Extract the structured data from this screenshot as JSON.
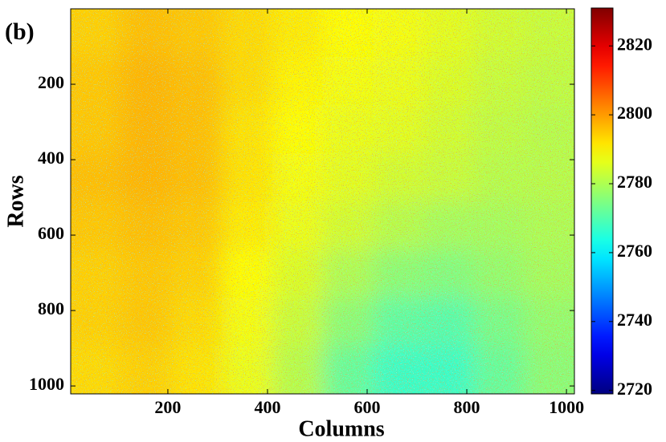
{
  "chart_data": {
    "type": "heatmap",
    "panel_label": "(b)",
    "x_label": "Columns",
    "y_label": "Rows",
    "xlim": [
      5,
      1016
    ],
    "ylim": [
      0,
      1021
    ],
    "xticks": [
      200,
      400,
      600,
      800,
      1000
    ],
    "yticks": [
      200,
      400,
      600,
      800,
      1000
    ],
    "y_reversed": true,
    "colormap": "jet",
    "clim": [
      2719,
      2831
    ],
    "colorbar_ticks": [
      2720,
      2740,
      2760,
      2780,
      2800,
      2820
    ],
    "values": [
      [
        2794,
        2796,
        2795,
        2793,
        2791,
        2789,
        2788,
        2786,
        2784,
        2783
      ],
      [
        2795,
        2797,
        2796,
        2793,
        2790,
        2788,
        2787,
        2785,
        2783,
        2782
      ],
      [
        2795,
        2797,
        2796,
        2792,
        2789,
        2787,
        2786,
        2784,
        2782,
        2781
      ],
      [
        2796,
        2797,
        2796,
        2792,
        2788,
        2786,
        2784,
        2783,
        2781,
        2781
      ],
      [
        2795,
        2796,
        2795,
        2791,
        2787,
        2784,
        2781,
        2779,
        2779,
        2780
      ],
      [
        2794,
        2795,
        2794,
        2789,
        2785,
        2780,
        2776,
        2775,
        2777,
        2779
      ],
      [
        2794,
        2795,
        2793,
        2788,
        2783,
        2776,
        2771,
        2770,
        2774,
        2777
      ],
      [
        2793,
        2794,
        2792,
        2787,
        2781,
        2772,
        2767,
        2767,
        2772,
        2776
      ]
    ]
  }
}
